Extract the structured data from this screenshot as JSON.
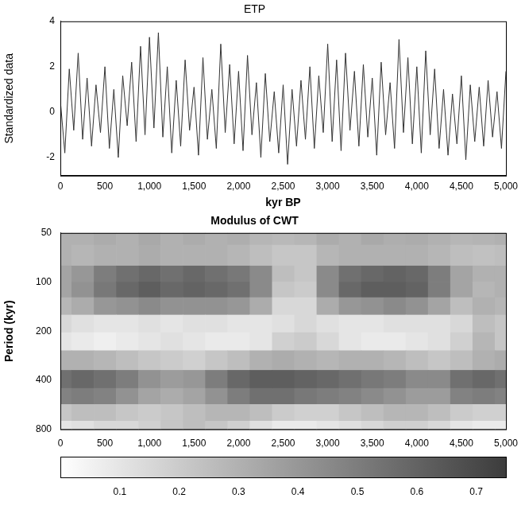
{
  "chart_data": [
    {
      "type": "line",
      "title": "ETP",
      "y_label": "Standardized data",
      "x_label": "kyr BP",
      "color": "#333333",
      "grid": false,
      "xlim": [
        0,
        5000
      ],
      "xticks": [
        0,
        500,
        1000,
        1500,
        2000,
        2500,
        3000,
        3500,
        4000,
        4500,
        5000
      ],
      "ylim": [
        -2.8,
        4
      ],
      "yticks": [
        -2,
        0,
        2,
        4
      ],
      "x": [
        0,
        50,
        100,
        150,
        200,
        250,
        300,
        350,
        400,
        450,
        500,
        550,
        600,
        650,
        700,
        750,
        800,
        850,
        900,
        950,
        1000,
        1050,
        1100,
        1150,
        1200,
        1250,
        1300,
        1350,
        1400,
        1450,
        1500,
        1550,
        1600,
        1650,
        1700,
        1750,
        1800,
        1850,
        1900,
        1950,
        2000,
        2050,
        2100,
        2150,
        2200,
        2250,
        2300,
        2350,
        2400,
        2450,
        2500,
        2550,
        2600,
        2650,
        2700,
        2750,
        2800,
        2850,
        2900,
        2950,
        3000,
        3050,
        3100,
        3150,
        3200,
        3250,
        3300,
        3350,
        3400,
        3450,
        3500,
        3550,
        3600,
        3650,
        3700,
        3750,
        3800,
        3850,
        3900,
        3950,
        4000,
        4050,
        4100,
        4150,
        4200,
        4250,
        4300,
        4350,
        4400,
        4450,
        4500,
        4550,
        4600,
        4650,
        4700,
        4750,
        4800,
        4850,
        4900,
        4950,
        5000
      ],
      "values": [
        0.5,
        -1.8,
        1.9,
        -0.8,
        2.6,
        -1.2,
        1.5,
        -1.5,
        1.2,
        -0.9,
        2.0,
        -1.6,
        1.0,
        -2.0,
        1.6,
        -0.6,
        2.2,
        -1.3,
        2.9,
        -1.0,
        3.3,
        -0.7,
        3.5,
        -1.1,
        2.0,
        -1.8,
        1.4,
        -1.5,
        2.3,
        -0.8,
        1.1,
        -1.9,
        2.4,
        -1.2,
        1.0,
        -1.6,
        3.0,
        -0.9,
        2.1,
        -1.4,
        1.8,
        -1.7,
        2.5,
        -1.0,
        1.3,
        -2.0,
        1.7,
        -1.3,
        0.9,
        -1.8,
        1.2,
        -2.3,
        1.0,
        -1.5,
        1.4,
        -1.2,
        2.0,
        -1.6,
        1.6,
        -0.9,
        3.0,
        -1.3,
        2.3,
        -1.7,
        2.6,
        -0.8,
        1.8,
        -1.5,
        2.1,
        -1.1,
        1.5,
        -1.9,
        2.2,
        -1.0,
        1.3,
        -1.6,
        3.2,
        -0.9,
        2.4,
        -1.4,
        2.0,
        -1.8,
        2.7,
        -1.0,
        1.9,
        -1.6,
        1.0,
        -1.9,
        0.8,
        -1.4,
        1.6,
        -2.1,
        1.2,
        -1.3,
        1.1,
        -1.5,
        1.4,
        -1.1,
        0.9,
        -1.6,
        1.8
      ]
    },
    {
      "type": "heatmap",
      "title": "Modulus of CWT",
      "y_label": "Period (kyr)",
      "log": "y",
      "xlim": [
        0,
        5000
      ],
      "xticks": [
        0,
        500,
        1000,
        1500,
        2000,
        2500,
        3000,
        3500,
        4000,
        4500,
        5000
      ],
      "ylim": [
        50,
        800
      ],
      "yticks": [
        50,
        100,
        200,
        400,
        800
      ],
      "x": [
        0,
        250,
        500,
        750,
        1000,
        1250,
        1500,
        1750,
        2000,
        2250,
        2500,
        2750,
        3000,
        3250,
        3500,
        3750,
        4000,
        4250,
        4500,
        4750,
        5000
      ],
      "y": [
        50,
        70,
        90,
        110,
        140,
        180,
        230,
        300,
        400,
        500,
        630,
        800
      ],
      "cells": [
        [
          0.3,
          0.3,
          0.32,
          0.3,
          0.33,
          0.3,
          0.32,
          0.3,
          0.31,
          0.28,
          0.27,
          0.28,
          0.32,
          0.3,
          0.33,
          0.31,
          0.32,
          0.3,
          0.28,
          0.29,
          0.3
        ],
        [
          0.3,
          0.28,
          0.3,
          0.3,
          0.32,
          0.3,
          0.3,
          0.3,
          0.28,
          0.25,
          0.22,
          0.22,
          0.28,
          0.3,
          0.3,
          0.3,
          0.3,
          0.28,
          0.25,
          0.24,
          0.25
        ],
        [
          0.35,
          0.4,
          0.5,
          0.55,
          0.58,
          0.55,
          0.58,
          0.55,
          0.52,
          0.45,
          0.25,
          0.22,
          0.45,
          0.55,
          0.58,
          0.6,
          0.58,
          0.5,
          0.35,
          0.3,
          0.3
        ],
        [
          0.35,
          0.42,
          0.52,
          0.58,
          0.62,
          0.58,
          0.6,
          0.58,
          0.55,
          0.45,
          0.22,
          0.2,
          0.45,
          0.58,
          0.62,
          0.62,
          0.6,
          0.5,
          0.35,
          0.28,
          0.3
        ],
        [
          0.28,
          0.32,
          0.4,
          0.42,
          0.45,
          0.42,
          0.42,
          0.42,
          0.4,
          0.32,
          0.15,
          0.15,
          0.32,
          0.4,
          0.42,
          0.45,
          0.42,
          0.35,
          0.25,
          0.3,
          0.28
        ],
        [
          0.15,
          0.12,
          0.1,
          0.1,
          0.12,
          0.1,
          0.12,
          0.12,
          0.1,
          0.1,
          0.12,
          0.15,
          0.12,
          0.1,
          0.1,
          0.12,
          0.12,
          0.12,
          0.15,
          0.25,
          0.22
        ],
        [
          0.1,
          0.08,
          0.06,
          0.08,
          0.1,
          0.12,
          0.1,
          0.08,
          0.08,
          0.1,
          0.18,
          0.2,
          0.15,
          0.1,
          0.08,
          0.08,
          0.1,
          0.12,
          0.18,
          0.28,
          0.22
        ],
        [
          0.3,
          0.3,
          0.28,
          0.25,
          0.22,
          0.2,
          0.18,
          0.22,
          0.25,
          0.3,
          0.32,
          0.3,
          0.28,
          0.3,
          0.3,
          0.28,
          0.25,
          0.22,
          0.25,
          0.3,
          0.32
        ],
        [
          0.55,
          0.58,
          0.55,
          0.5,
          0.42,
          0.38,
          0.4,
          0.5,
          0.58,
          0.62,
          0.62,
          0.6,
          0.58,
          0.55,
          0.52,
          0.5,
          0.45,
          0.45,
          0.55,
          0.58,
          0.55
        ],
        [
          0.48,
          0.5,
          0.48,
          0.42,
          0.35,
          0.32,
          0.35,
          0.42,
          0.5,
          0.55,
          0.55,
          0.52,
          0.5,
          0.48,
          0.45,
          0.42,
          0.38,
          0.38,
          0.48,
          0.5,
          0.48
        ],
        [
          0.22,
          0.25,
          0.25,
          0.22,
          0.2,
          0.22,
          0.25,
          0.28,
          0.28,
          0.25,
          0.2,
          0.18,
          0.18,
          0.22,
          0.25,
          0.28,
          0.28,
          0.25,
          0.2,
          0.18,
          0.18
        ],
        [
          0.1,
          0.12,
          0.15,
          0.15,
          0.18,
          0.22,
          0.25,
          0.22,
          0.18,
          0.12,
          0.08,
          0.08,
          0.1,
          0.12,
          0.15,
          0.18,
          0.18,
          0.15,
          0.1,
          0.08,
          0.08
        ]
      ],
      "colorbar": {
        "range": [
          0,
          0.75
        ],
        "ticks": [
          0.1,
          0.2,
          0.3,
          0.4,
          0.5,
          0.6,
          0.7
        ]
      }
    }
  ]
}
